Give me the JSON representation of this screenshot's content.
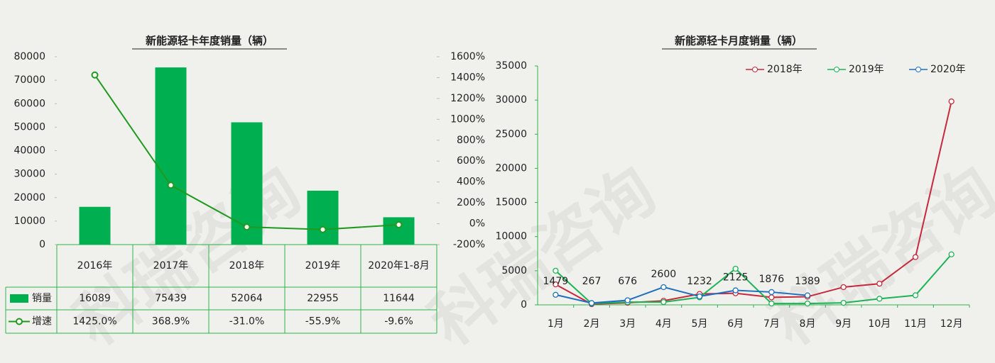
{
  "watermark": "科瑞咨询",
  "chart_data": [
    {
      "type": "combo",
      "title": "新能源轻卡年度销量（辆）",
      "categories": [
        "2016年",
        "2017年",
        "2018年",
        "2019年",
        "2020年1-8月"
      ],
      "series": [
        {
          "name": "销量",
          "type": "bar",
          "color": "#00b050",
          "values": [
            16089,
            75439,
            52064,
            22955,
            11644
          ]
        },
        {
          "name": "增速",
          "type": "line",
          "axis": "y2",
          "color": "#1f9a1f",
          "values": [
            1425.0,
            368.9,
            -31.0,
            -55.9,
            -9.6
          ],
          "value_labels": [
            "1425.0%",
            "368.9%",
            "-31.0%",
            "-55.9%",
            "-9.6%"
          ]
        }
      ],
      "ylim": [
        0,
        80000
      ],
      "yticks": [
        0,
        10000,
        20000,
        30000,
        40000,
        50000,
        60000,
        70000,
        80000
      ],
      "y2lim": [
        -200,
        1600
      ],
      "y2ticks": [
        {
          "value": -200,
          "label": "-200%"
        },
        {
          "value": 0,
          "label": "0%"
        },
        {
          "value": 200,
          "label": "200%"
        },
        {
          "value": 400,
          "label": "400%"
        },
        {
          "value": 600,
          "label": "600%"
        },
        {
          "value": 800,
          "label": "800%"
        },
        {
          "value": 1000,
          "label": "1000%"
        },
        {
          "value": 1200,
          "label": "1200%"
        },
        {
          "value": 1400,
          "label": "1400%"
        },
        {
          "value": 1600,
          "label": "1600%"
        }
      ]
    },
    {
      "type": "line",
      "title": "新能源轻卡月度销量（辆）",
      "categories": [
        "1月",
        "2月",
        "3月",
        "4月",
        "5月",
        "6月",
        "7月",
        "8月",
        "9月",
        "10月",
        "11月",
        "12月"
      ],
      "series": [
        {
          "name": "2018年",
          "color": "#c8283c",
          "values": [
            3000,
            100,
            300,
            600,
            1600,
            1700,
            1100,
            1200,
            2600,
            3100,
            7000,
            29800
          ]
        },
        {
          "name": "2019年",
          "color": "#1db356",
          "values": [
            5000,
            200,
            400,
            400,
            1100,
            5300,
            200,
            200,
            300,
            900,
            1400,
            7400
          ]
        },
        {
          "name": "2020年",
          "color": "#1f6fbf",
          "values": [
            1479,
            267,
            676,
            2600,
            1232,
            2125,
            1876,
            1389,
            null,
            null,
            null,
            null
          ],
          "data_labels": true
        }
      ],
      "ylim": [
        0,
        35000
      ],
      "yticks": [
        0,
        5000,
        10000,
        15000,
        20000,
        25000,
        30000,
        35000
      ],
      "legend": "top-right"
    }
  ]
}
